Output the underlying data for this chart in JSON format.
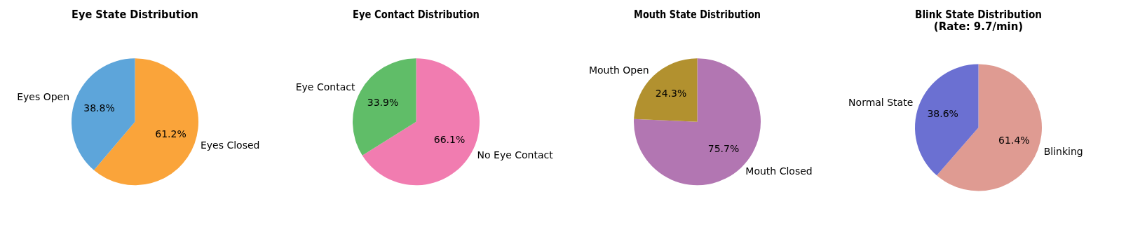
{
  "chart_data": [
    {
      "type": "pie",
      "title": "Eye State Distribution",
      "categories": [
        "Eyes Open",
        "Eyes Closed"
      ],
      "values": [
        38.8,
        61.2
      ],
      "value_labels": [
        "38.8%",
        "61.2%"
      ],
      "colors": [
        "#5da5da",
        "#faa43a"
      ],
      "legend": false
    },
    {
      "type": "pie",
      "title": "Eye Contact Distribution",
      "categories": [
        "Eye Contact",
        "No Eye Contact"
      ],
      "values": [
        33.9,
        66.1
      ],
      "value_labels": [
        "33.9%",
        "66.1%"
      ],
      "colors": [
        "#60bd68",
        "#f17cb0"
      ],
      "legend": false
    },
    {
      "type": "pie",
      "title": "Mouth State Distribution",
      "categories": [
        "Mouth Open",
        "Mouth Closed"
      ],
      "values": [
        24.3,
        75.7
      ],
      "value_labels": [
        "24.3%",
        "75.7%"
      ],
      "colors": [
        "#b2912f",
        "#b276b2"
      ],
      "legend": false
    },
    {
      "type": "pie",
      "title": "Blink State Distribution\n(Rate: 9.7/min)",
      "categories": [
        "Normal State",
        "Blinking"
      ],
      "values": [
        38.6,
        61.4
      ],
      "value_labels": [
        "38.6%",
        "61.4%"
      ],
      "colors": [
        "#6b70d2",
        "#df9b92"
      ],
      "legend": false
    }
  ]
}
